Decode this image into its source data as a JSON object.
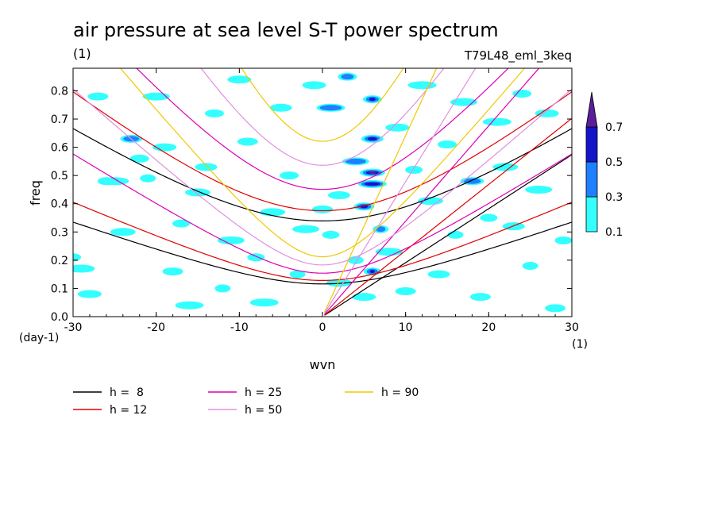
{
  "chart_data": {
    "type": "heatmap",
    "title": "air pressure at sea level S-T power spectrum",
    "subtitle": "(1)",
    "experiment": "T79L48_eml_3keq",
    "xlabel": "wvn",
    "ylabel": "freq",
    "xunit": "(1)",
    "yunit": "(day-1)",
    "xlim": [
      -30,
      30
    ],
    "ylim": [
      0,
      0.88
    ],
    "xticks": [
      -30,
      -20,
      -10,
      0,
      10,
      20,
      30
    ],
    "yticks": [
      0.0,
      0.1,
      0.2,
      0.3,
      0.4,
      0.5,
      0.6,
      0.7,
      0.8
    ],
    "xtick_labels": [
      "-30",
      "-20",
      "-10",
      "0",
      "10",
      "20",
      "30"
    ],
    "ytick_labels": [
      "0.0",
      "0.1",
      "0.2",
      "0.3",
      "0.4",
      "0.5",
      "0.6",
      "0.7",
      "0.8"
    ],
    "grid": false,
    "colorbar": {
      "levels": [
        0.1,
        0.3,
        0.5,
        0.7
      ],
      "labels": [
        "0.1",
        "0.3",
        "0.5",
        "0.7"
      ],
      "colors": [
        "#33ffff",
        "#1e7fff",
        "#1414c8",
        "#5a1e9a"
      ]
    },
    "dispersion_curves": [
      {
        "label": "h =  8",
        "h": 8,
        "color": "#000000"
      },
      {
        "label": "h = 12",
        "h": 12,
        "color": "#e00000"
      },
      {
        "label": "h = 25",
        "h": 25,
        "color": "#dd00b4"
      },
      {
        "label": "h = 50",
        "h": 50,
        "color": "#e090e0"
      },
      {
        "label": "h = 90",
        "h": 90,
        "color": "#f0c800"
      }
    ],
    "features": [
      {
        "k": -30,
        "f": 0.21,
        "level": 0.1
      },
      {
        "k": -29,
        "f": 0.17,
        "level": 0.1
      },
      {
        "k": -28,
        "f": 0.08,
        "level": 0.1
      },
      {
        "k": -27,
        "f": 0.78,
        "level": 0.1
      },
      {
        "k": -26,
        "f": 0.48,
        "level": 0.3
      },
      {
        "k": -25,
        "f": 0.48,
        "level": 0.1
      },
      {
        "k": -24,
        "f": 0.3,
        "level": 0.1
      },
      {
        "k": -23,
        "f": 0.63,
        "level": 0.3
      },
      {
        "k": -22,
        "f": 0.56,
        "level": 0.1
      },
      {
        "k": -21,
        "f": 0.49,
        "level": 0.1
      },
      {
        "k": -20,
        "f": 0.78,
        "level": 0.1
      },
      {
        "k": -19,
        "f": 0.6,
        "level": 0.1
      },
      {
        "k": -18,
        "f": 0.16,
        "level": 0.1
      },
      {
        "k": -17,
        "f": 0.33,
        "level": 0.1
      },
      {
        "k": -16,
        "f": 0.04,
        "level": 0.1
      },
      {
        "k": -15,
        "f": 0.44,
        "level": 0.1
      },
      {
        "k": -14,
        "f": 0.53,
        "level": 0.1
      },
      {
        "k": -13,
        "f": 0.72,
        "level": 0.1
      },
      {
        "k": -12,
        "f": 0.1,
        "level": 0.1
      },
      {
        "k": -11,
        "f": 0.27,
        "level": 0.1
      },
      {
        "k": -10,
        "f": 0.84,
        "level": 0.1
      },
      {
        "k": -9,
        "f": 0.62,
        "level": 0.1
      },
      {
        "k": -8,
        "f": 0.21,
        "level": 0.1
      },
      {
        "k": -7,
        "f": 0.05,
        "level": 0.1
      },
      {
        "k": -6,
        "f": 0.37,
        "level": 0.1
      },
      {
        "k": -5,
        "f": 0.74,
        "level": 0.1
      },
      {
        "k": -4,
        "f": 0.5,
        "level": 0.1
      },
      {
        "k": -3,
        "f": 0.15,
        "level": 0.1
      },
      {
        "k": -2,
        "f": 0.31,
        "level": 0.1
      },
      {
        "k": -1,
        "f": 0.82,
        "level": 0.1
      },
      {
        "k": 0,
        "f": 0.38,
        "level": 0.1
      },
      {
        "k": 1,
        "f": 0.29,
        "level": 0.1
      },
      {
        "k": 1,
        "f": 0.74,
        "level": 0.3
      },
      {
        "k": 2,
        "f": 0.12,
        "level": 0.1
      },
      {
        "k": 2,
        "f": 0.43,
        "level": 0.1
      },
      {
        "k": 3,
        "f": 0.85,
        "level": 0.3
      },
      {
        "k": 4,
        "f": 0.2,
        "level": 0.1
      },
      {
        "k": 4,
        "f": 0.55,
        "level": 0.3
      },
      {
        "k": 5,
        "f": 0.07,
        "level": 0.1
      },
      {
        "k": 5,
        "f": 0.39,
        "level": 0.5
      },
      {
        "k": 6,
        "f": 0.16,
        "level": 0.5
      },
      {
        "k": 6,
        "f": 0.47,
        "level": 0.5
      },
      {
        "k": 6,
        "f": 0.51,
        "level": 0.7
      },
      {
        "k": 6,
        "f": 0.63,
        "level": 0.5
      },
      {
        "k": 6,
        "f": 0.77,
        "level": 0.5
      },
      {
        "k": 7,
        "f": 0.31,
        "level": 0.3
      },
      {
        "k": 8,
        "f": 0.23,
        "level": 0.1
      },
      {
        "k": 9,
        "f": 0.67,
        "level": 0.1
      },
      {
        "k": 10,
        "f": 0.09,
        "level": 0.1
      },
      {
        "k": 11,
        "f": 0.52,
        "level": 0.1
      },
      {
        "k": 12,
        "f": 0.82,
        "level": 0.1
      },
      {
        "k": 13,
        "f": 0.41,
        "level": 0.1
      },
      {
        "k": 14,
        "f": 0.15,
        "level": 0.1
      },
      {
        "k": 15,
        "f": 0.61,
        "level": 0.1
      },
      {
        "k": 16,
        "f": 0.29,
        "level": 0.1
      },
      {
        "k": 17,
        "f": 0.76,
        "level": 0.1
      },
      {
        "k": 18,
        "f": 0.48,
        "level": 0.3
      },
      {
        "k": 19,
        "f": 0.07,
        "level": 0.1
      },
      {
        "k": 20,
        "f": 0.35,
        "level": 0.1
      },
      {
        "k": 21,
        "f": 0.69,
        "level": 0.1
      },
      {
        "k": 22,
        "f": 0.53,
        "level": 0.1
      },
      {
        "k": 23,
        "f": 0.32,
        "level": 0.1
      },
      {
        "k": 24,
        "f": 0.79,
        "level": 0.1
      },
      {
        "k": 25,
        "f": 0.18,
        "level": 0.1
      },
      {
        "k": 26,
        "f": 0.45,
        "level": 0.1
      },
      {
        "k": 27,
        "f": 0.72,
        "level": 0.1
      },
      {
        "k": 28,
        "f": 0.03,
        "level": 0.1
      },
      {
        "k": 29,
        "f": 0.27,
        "level": 0.1
      }
    ]
  }
}
